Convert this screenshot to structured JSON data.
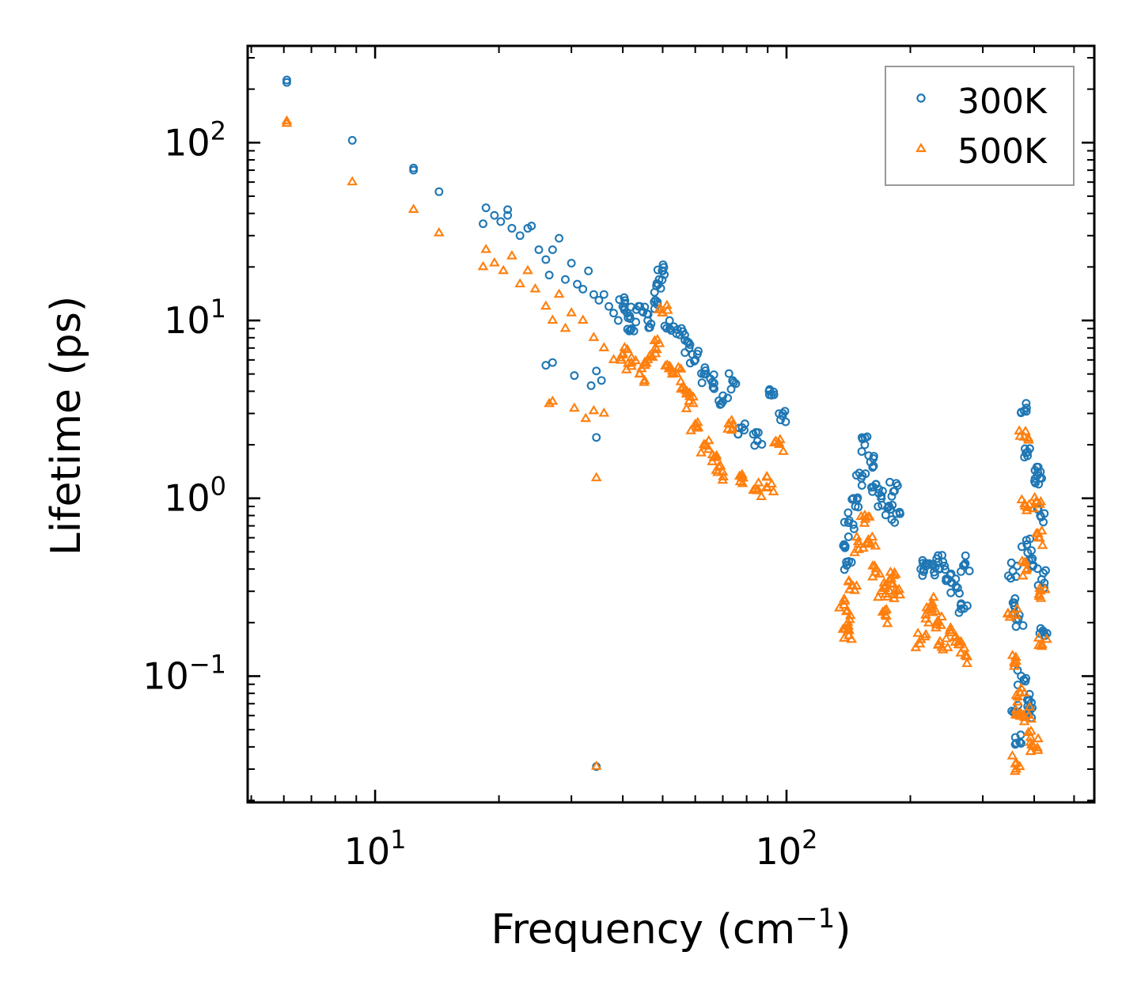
{
  "chart_data": {
    "type": "scatter",
    "xscale": "log",
    "yscale": "log",
    "xlabel_main": "Frequency (cm",
    "xlabel_exp": "−1",
    "xlabel_close": ")",
    "ylabel": "Lifetime (ps)",
    "xlim": [
      4.9,
      560
    ],
    "ylim": [
      0.0195,
      350
    ],
    "x_ticks": [
      {
        "value": 10,
        "base": "10",
        "exp": "1"
      },
      {
        "value": 100,
        "base": "10",
        "exp": "2"
      }
    ],
    "y_ticks": [
      {
        "value": 0.1,
        "base": "10",
        "exp": "−1"
      },
      {
        "value": 1,
        "base": "10",
        "exp": "0"
      },
      {
        "value": 10,
        "base": "10",
        "exp": "1"
      },
      {
        "value": 100,
        "base": "10",
        "exp": "2"
      }
    ],
    "legend_position": "top-right",
    "series": [
      {
        "name": "300K",
        "color": "#1f77b4",
        "marker": "circle",
        "anchors": [
          [
            6.1,
            225
          ],
          [
            6.1,
            218
          ],
          [
            8.8,
            103
          ],
          [
            12.4,
            72
          ],
          [
            12.4,
            70
          ],
          [
            14.3,
            53
          ],
          [
            18.3,
            35
          ],
          [
            18.6,
            43
          ],
          [
            19.5,
            39
          ],
          [
            20.2,
            36
          ],
          [
            21.0,
            42
          ],
          [
            21.0,
            39
          ],
          [
            21.5,
            33
          ],
          [
            22.5,
            30
          ],
          [
            23.5,
            33
          ],
          [
            24.0,
            34
          ],
          [
            25.0,
            25
          ],
          [
            26.0,
            22
          ],
          [
            26.5,
            18
          ],
          [
            27.0,
            25
          ],
          [
            28.0,
            29
          ],
          [
            29.0,
            17
          ],
          [
            30.0,
            21
          ],
          [
            31.0,
            16
          ],
          [
            32.0,
            15
          ],
          [
            33.0,
            19
          ],
          [
            34.0,
            14
          ],
          [
            35.0,
            13
          ],
          [
            36.0,
            14
          ],
          [
            37.0,
            12
          ],
          [
            38.0,
            11
          ],
          [
            39.0,
            10
          ],
          [
            40.0,
            12
          ],
          [
            41.0,
            11
          ],
          [
            42.0,
            9
          ],
          [
            44.0,
            12
          ],
          [
            46.0,
            10
          ],
          [
            48.0,
            13
          ],
          [
            49.0,
            17
          ],
          [
            50.0,
            19
          ],
          [
            52.0,
            9
          ],
          [
            55.0,
            8.3
          ],
          [
            58.0,
            7
          ],
          [
            60.0,
            6
          ],
          [
            63.0,
            5
          ],
          [
            66.0,
            4.5
          ],
          [
            70.0,
            3.5
          ],
          [
            74.0,
            4.6
          ],
          [
            78.0,
            2.5
          ],
          [
            85.0,
            2.1
          ],
          [
            92.0,
            3.8
          ],
          [
            98.0,
            3.0
          ],
          [
            26.0,
            5.6
          ],
          [
            27.0,
            5.8
          ],
          [
            30.5,
            4.9
          ],
          [
            33.5,
            4.3
          ],
          [
            34.5,
            5.2
          ],
          [
            35.5,
            4.6
          ],
          [
            34.5,
            2.2
          ],
          [
            34.5,
            0.031
          ],
          [
            138,
            0.55
          ],
          [
            142,
            0.75
          ],
          [
            147,
            0.9
          ],
          [
            152,
            1.3
          ],
          [
            155,
            2.0
          ],
          [
            160,
            1.6
          ],
          [
            165,
            1.2
          ],
          [
            170,
            1.0
          ],
          [
            176,
            0.88
          ],
          [
            183,
            1.1
          ],
          [
            140,
            0.42
          ],
          [
            185,
            0.82
          ],
          [
            212,
            0.4
          ],
          [
            220,
            0.43
          ],
          [
            230,
            0.41
          ],
          [
            240,
            0.44
          ],
          [
            250,
            0.37
          ],
          [
            258,
            0.32
          ],
          [
            270,
            0.24
          ],
          [
            272,
            0.43
          ],
          [
            355,
            0.39
          ],
          [
            358,
            0.25
          ],
          [
            360,
            0.063
          ],
          [
            362,
            0.042
          ],
          [
            366,
            0.21
          ],
          [
            372,
            0.1
          ],
          [
            378,
            3.1
          ],
          [
            380,
            1.9
          ],
          [
            384,
            0.55
          ],
          [
            388,
            0.074
          ],
          [
            392,
            0.065
          ],
          [
            398,
            0.42
          ],
          [
            406,
            1.5
          ],
          [
            410,
            1.2
          ],
          [
            414,
            0.8
          ],
          [
            417,
            0.35
          ],
          [
            420,
            0.18
          ]
        ]
      },
      {
        "name": "500K",
        "color": "#ff7f0e",
        "marker": "triangle",
        "anchors": [
          [
            6.1,
            132
          ],
          [
            6.1,
            128
          ],
          [
            8.8,
            60
          ],
          [
            12.4,
            42
          ],
          [
            14.3,
            31
          ],
          [
            18.3,
            20
          ],
          [
            18.6,
            25
          ],
          [
            19.5,
            21
          ],
          [
            20.5,
            19
          ],
          [
            21.5,
            23
          ],
          [
            22.5,
            16
          ],
          [
            23.5,
            19
          ],
          [
            24.5,
            15
          ],
          [
            26.0,
            12
          ],
          [
            27.0,
            10
          ],
          [
            28.0,
            14
          ],
          [
            29.0,
            9
          ],
          [
            30.0,
            11
          ],
          [
            32.0,
            10
          ],
          [
            34.0,
            8
          ],
          [
            36.0,
            7
          ],
          [
            38.0,
            6
          ],
          [
            40.0,
            6.5
          ],
          [
            42.0,
            5.5
          ],
          [
            44.0,
            5
          ],
          [
            46.0,
            6
          ],
          [
            48.0,
            7
          ],
          [
            50.0,
            11
          ],
          [
            52.0,
            5.5
          ],
          [
            54.0,
            5
          ],
          [
            56.0,
            4.2
          ],
          [
            58.0,
            3.5
          ],
          [
            60.0,
            2.6
          ],
          [
            63.0,
            2.0
          ],
          [
            66.0,
            1.6
          ],
          [
            70.0,
            1.4
          ],
          [
            74.0,
            2.6
          ],
          [
            78.0,
            1.3
          ],
          [
            85.0,
            1.1
          ],
          [
            92.0,
            1.2
          ],
          [
            96.0,
            2.0
          ],
          [
            26.5,
            3.4
          ],
          [
            27.0,
            3.5
          ],
          [
            30.5,
            3.2
          ],
          [
            32.5,
            2.8
          ],
          [
            34.0,
            3.1
          ],
          [
            36.0,
            3.0
          ],
          [
            34.5,
            1.3
          ],
          [
            34.5,
            0.031
          ],
          [
            138,
            0.25
          ],
          [
            141,
            0.2
          ],
          [
            142,
            0.18
          ],
          [
            145,
            0.32
          ],
          [
            150,
            0.55
          ],
          [
            155,
            0.8
          ],
          [
            160,
            0.55
          ],
          [
            165,
            0.4
          ],
          [
            170,
            0.3
          ],
          [
            174,
            0.22
          ],
          [
            178,
            0.3
          ],
          [
            183,
            0.38
          ],
          [
            186,
            0.3
          ],
          [
            212,
            0.16
          ],
          [
            218,
            0.22
          ],
          [
            225,
            0.25
          ],
          [
            232,
            0.2
          ],
          [
            240,
            0.14
          ],
          [
            250,
            0.18
          ],
          [
            262,
            0.15
          ],
          [
            272,
            0.13
          ],
          [
            355,
            0.22
          ],
          [
            358,
            0.12
          ],
          [
            360,
            0.032
          ],
          [
            364,
            0.06
          ],
          [
            370,
            0.08
          ],
          [
            378,
            2.2
          ],
          [
            380,
            0.9
          ],
          [
            384,
            0.4
          ],
          [
            388,
            0.06
          ],
          [
            392,
            0.045
          ],
          [
            398,
            0.04
          ],
          [
            406,
            0.95
          ],
          [
            410,
            0.6
          ],
          [
            414,
            0.3
          ],
          [
            418,
            0.15
          ]
        ]
      }
    ]
  }
}
